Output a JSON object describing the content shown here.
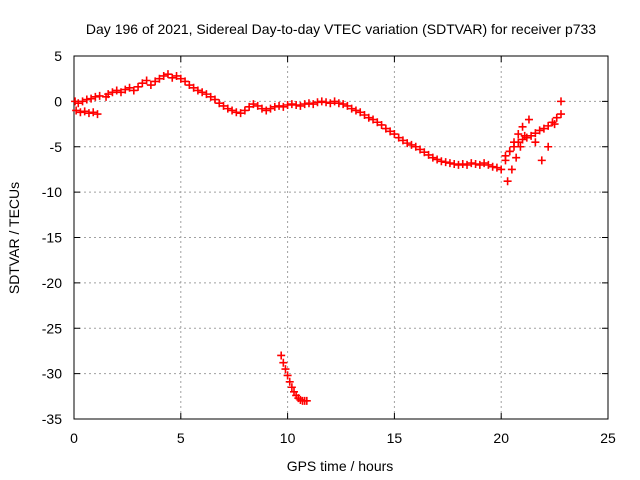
{
  "chart_data": {
    "type": "scatter",
    "title": "Day 196 of 2021, Sidereal Day-to-day VTEC variation (SDTVAR) for receiver p733",
    "xlabel": "GPS time / hours",
    "ylabel": "SDTVAR / TECUs",
    "xlim": [
      0,
      25
    ],
    "ylim": [
      -35,
      5
    ],
    "x_ticks": [
      0,
      5,
      10,
      15,
      20,
      25
    ],
    "x_tick_labels": [
      "0",
      "5",
      "10",
      "15",
      "20",
      "25"
    ],
    "y_ticks": [
      5,
      0,
      -5,
      -10,
      -15,
      -20,
      -25,
      -30,
      -35
    ],
    "y_tick_labels": [
      "5",
      "0",
      "-5",
      "-10",
      "-15",
      "-20",
      "-25",
      "-30",
      "-35"
    ],
    "grid": true,
    "legend": "none",
    "marker": "+",
    "series": [
      {
        "name": "SDTVAR",
        "color": "#ff0000",
        "x": [
          0.05,
          0.2,
          0.4,
          0.6,
          0.8,
          1.0,
          1.2,
          0.1,
          0.3,
          0.5,
          0.7,
          0.9,
          1.1,
          1.5,
          1.6,
          1.8,
          2.0,
          2.2,
          2.4,
          2.6,
          2.8,
          3.0,
          3.2,
          3.4,
          3.6,
          3.8,
          4.0,
          4.2,
          4.4,
          4.6,
          4.8,
          5.0,
          5.2,
          5.4,
          5.6,
          5.8,
          6.0,
          6.2,
          6.4,
          6.6,
          6.8,
          7.0,
          7.2,
          7.4,
          7.6,
          7.8,
          8.0,
          8.2,
          8.4,
          8.6,
          8.8,
          9.0,
          9.2,
          9.4,
          9.6,
          9.8,
          10.0,
          10.2,
          10.4,
          10.6,
          10.8,
          11.0,
          11.2,
          11.4,
          11.6,
          11.8,
          12.0,
          12.2,
          12.4,
          12.6,
          12.8,
          13.0,
          13.2,
          13.4,
          13.6,
          13.8,
          14.0,
          14.2,
          14.4,
          14.6,
          14.8,
          15.0,
          15.2,
          15.4,
          15.6,
          15.8,
          16.0,
          16.2,
          16.4,
          16.6,
          16.8,
          17.0,
          17.2,
          17.4,
          17.6,
          17.8,
          18.0,
          18.2,
          18.4,
          18.6,
          18.8,
          19.0,
          19.2,
          19.4,
          19.6,
          19.8,
          20.0,
          20.2,
          20.4,
          20.6,
          20.8,
          21.0,
          21.2,
          21.4,
          21.6,
          21.8,
          22.0,
          22.2,
          22.4,
          22.6,
          22.8,
          20.3,
          20.5,
          20.7,
          20.9,
          21.1,
          20.2,
          20.4,
          20.6,
          20.8,
          21.0,
          21.3,
          21.6,
          21.9,
          22.2,
          22.5,
          22.8,
          9.7,
          9.8,
          9.9,
          10.0,
          10.1,
          10.2,
          10.3,
          10.4,
          10.5,
          10.6,
          10.7,
          10.8,
          10.9
        ],
        "y": [
          0.0,
          -0.2,
          0.0,
          0.2,
          0.3,
          0.5,
          0.6,
          -1.0,
          -1.2,
          -1.1,
          -1.3,
          -1.2,
          -1.4,
          0.5,
          0.8,
          1.0,
          1.2,
          1.0,
          1.3,
          1.5,
          1.2,
          1.6,
          2.0,
          2.3,
          1.8,
          2.2,
          2.5,
          2.8,
          3.0,
          2.6,
          2.8,
          2.5,
          2.2,
          1.8,
          1.5,
          1.2,
          1.0,
          0.8,
          0.5,
          0.2,
          -0.2,
          -0.5,
          -0.8,
          -1.0,
          -1.2,
          -1.3,
          -1.0,
          -0.6,
          -0.3,
          -0.5,
          -0.8,
          -1.0,
          -0.8,
          -0.6,
          -0.5,
          -0.6,
          -0.4,
          -0.3,
          -0.4,
          -0.5,
          -0.3,
          -0.2,
          -0.3,
          -0.1,
          0.0,
          -0.1,
          -0.2,
          0.0,
          -0.2,
          -0.3,
          -0.5,
          -0.8,
          -1.0,
          -1.2,
          -1.5,
          -1.8,
          -2.0,
          -2.3,
          -2.6,
          -3.0,
          -3.3,
          -3.6,
          -4.0,
          -4.3,
          -4.6,
          -4.8,
          -5.0,
          -5.3,
          -5.6,
          -5.9,
          -6.2,
          -6.4,
          -6.6,
          -6.7,
          -6.8,
          -6.9,
          -7.0,
          -6.9,
          -7.0,
          -6.8,
          -6.9,
          -7.0,
          -6.8,
          -7.0,
          -7.2,
          -7.3,
          -7.5,
          -6.0,
          -5.5,
          -5.0,
          -4.5,
          -4.2,
          -4.0,
          -3.8,
          -3.5,
          -3.2,
          -3.0,
          -2.7,
          -2.3,
          -1.8,
          -1.4,
          -8.8,
          -7.5,
          -6.2,
          -5.0,
          -3.8,
          -6.5,
          -5.5,
          -4.5,
          -3.6,
          -2.8,
          -2.0,
          -4.5,
          -6.5,
          -5.0,
          -2.5,
          0.0,
          -28.0,
          -28.8,
          -29.5,
          -30.2,
          -30.9,
          -31.5,
          -32.0,
          -32.4,
          -32.7,
          -32.9,
          -33.0,
          -33.0,
          -33.0
        ]
      }
    ]
  }
}
